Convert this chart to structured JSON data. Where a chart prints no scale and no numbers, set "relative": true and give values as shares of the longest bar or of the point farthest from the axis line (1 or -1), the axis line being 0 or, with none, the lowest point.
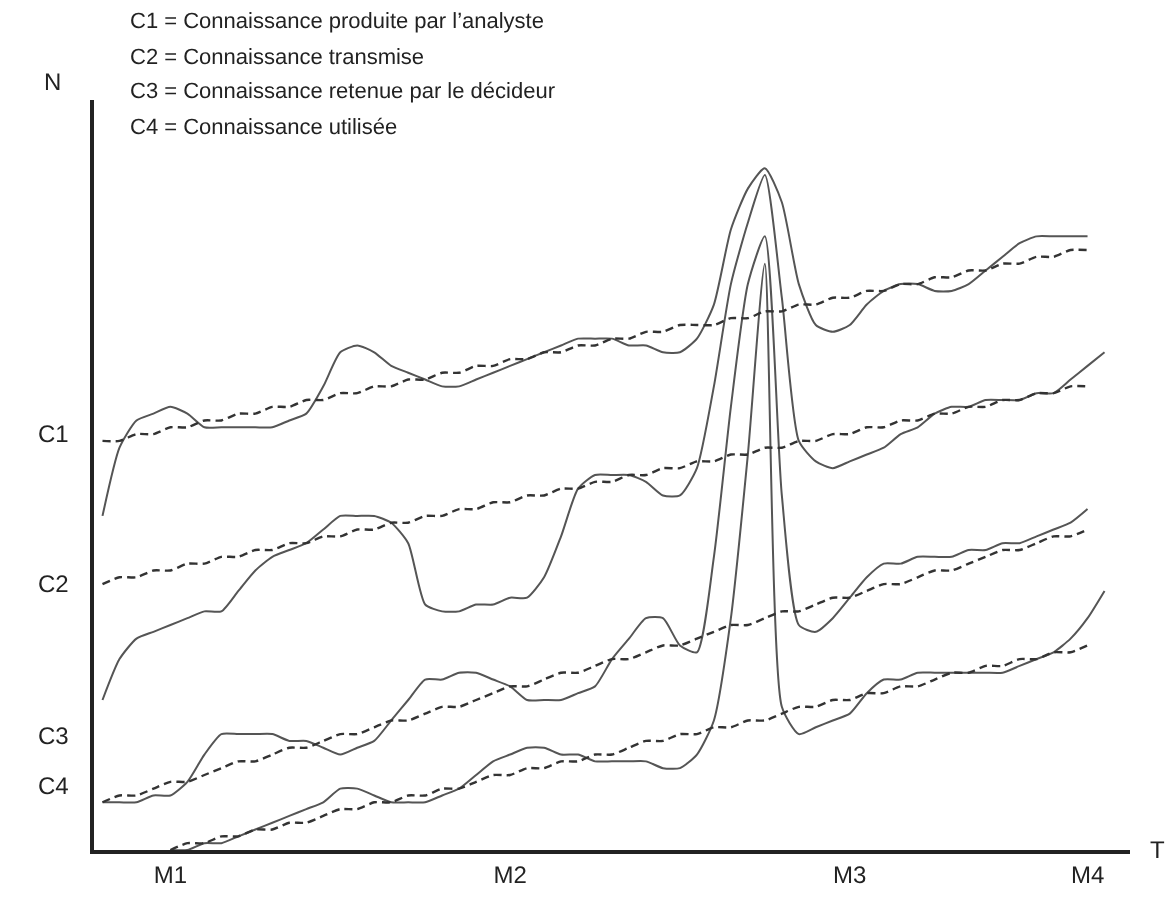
{
  "chart_data": {
    "type": "line",
    "relative": true,
    "xlabel": "T",
    "ylabel": "N",
    "categories": [
      null,
      null,
      null,
      null,
      "M1",
      null,
      null,
      null,
      null,
      null,
      null,
      null,
      null,
      null,
      null,
      null,
      null,
      null,
      null,
      null,
      null,
      null,
      null,
      null,
      "M2",
      null,
      null,
      null,
      null,
      null,
      null,
      null,
      null,
      null,
      null,
      null,
      null,
      null,
      null,
      null,
      null,
      null,
      null,
      null,
      "M3",
      null,
      null,
      null,
      null,
      null,
      null,
      null,
      null,
      null,
      null,
      null,
      null,
      null,
      "M4",
      null,
      null
    ],
    "tick_labels": "x",
    "grid": false,
    "marker": "none",
    "annotations": [
      "C1 = Connaissance produite par l’analyste",
      "C2 = Connaissance transmise",
      "C3 = Connaissance retenue par le décideur",
      "C4 = Connaissance utilisée",
      "C1",
      "C2",
      "C3",
      "C4"
    ],
    "series": [
      {
        "color": "#555555",
        "line_style": "solid",
        "values": [
          0.49,
          0.59,
          0.63,
          0.64,
          0.65,
          0.64,
          0.62,
          0.62,
          0.62,
          0.62,
          0.62,
          0.63,
          0.64,
          0.68,
          0.73,
          0.74,
          0.73,
          0.71,
          0.7,
          0.69,
          0.68,
          0.68,
          0.69,
          0.7,
          0.71,
          0.72,
          0.73,
          0.74,
          0.75,
          0.75,
          0.75,
          0.74,
          0.74,
          0.73,
          0.73,
          0.75,
          0.8,
          0.91,
          0.97,
          1.0,
          0.95,
          0.83,
          0.77,
          0.76,
          0.77,
          0.8,
          0.82,
          0.83,
          0.83,
          0.82,
          0.82,
          0.83,
          0.85,
          0.87,
          0.89,
          0.9,
          0.9,
          0.9,
          0.9,
          null,
          null
        ]
      },
      {
        "color": "#555555",
        "line_style": "solid",
        "values": [
          0.22,
          0.28,
          0.31,
          0.32,
          0.33,
          0.34,
          0.35,
          0.35,
          0.38,
          0.41,
          0.43,
          0.44,
          0.45,
          0.47,
          0.49,
          0.49,
          0.49,
          0.48,
          0.45,
          0.36,
          0.35,
          0.35,
          0.36,
          0.36,
          0.37,
          0.37,
          0.4,
          0.46,
          0.53,
          0.55,
          0.55,
          0.55,
          0.54,
          0.52,
          0.52,
          0.56,
          0.68,
          0.83,
          0.92,
          0.99,
          0.81,
          0.6,
          0.57,
          0.56,
          0.57,
          0.58,
          0.59,
          0.61,
          0.62,
          0.64,
          0.65,
          0.65,
          0.66,
          0.66,
          0.66,
          0.67,
          0.67,
          0.69,
          0.71,
          0.73,
          null
        ]
      },
      {
        "color": "#555555",
        "line_style": "solid",
        "values": [
          0.07,
          0.07,
          0.07,
          0.08,
          0.08,
          0.1,
          0.14,
          0.17,
          0.17,
          0.17,
          0.17,
          0.16,
          0.16,
          0.15,
          0.14,
          0.15,
          0.16,
          0.19,
          0.22,
          0.25,
          0.25,
          0.26,
          0.26,
          0.25,
          0.24,
          0.22,
          0.22,
          0.22,
          0.23,
          0.24,
          0.28,
          0.31,
          0.34,
          0.34,
          0.3,
          0.29,
          0.43,
          0.65,
          0.83,
          0.9,
          0.52,
          0.33,
          0.32,
          0.34,
          0.37,
          0.4,
          0.42,
          0.42,
          0.43,
          0.43,
          0.43,
          0.44,
          0.44,
          0.45,
          0.45,
          0.46,
          0.47,
          0.48,
          0.5,
          null,
          null
        ]
      },
      {
        "color": "#555555",
        "line_style": "solid",
        "values": [
          null,
          null,
          null,
          null,
          0.0,
          0.0,
          0.01,
          0.01,
          0.02,
          0.03,
          0.04,
          0.05,
          0.06,
          0.07,
          0.09,
          0.09,
          0.08,
          0.07,
          0.07,
          0.07,
          0.08,
          0.09,
          0.11,
          0.13,
          0.14,
          0.15,
          0.15,
          0.14,
          0.14,
          0.13,
          0.13,
          0.13,
          0.13,
          0.12,
          0.12,
          0.14,
          0.19,
          0.34,
          0.58,
          0.86,
          0.21,
          0.17,
          0.18,
          0.19,
          0.2,
          0.23,
          0.25,
          0.25,
          0.26,
          0.26,
          0.26,
          0.26,
          0.26,
          0.26,
          0.27,
          0.28,
          0.29,
          0.31,
          0.34,
          0.38,
          null
        ]
      },
      {
        "color": "#333333",
        "line_style": "dashed",
        "values": [
          0.6,
          0.6,
          0.61,
          0.61,
          0.62,
          0.62,
          0.63,
          0.63,
          0.64,
          0.64,
          0.65,
          0.65,
          0.66,
          0.66,
          0.67,
          0.67,
          0.68,
          0.68,
          0.69,
          0.69,
          0.7,
          0.7,
          0.71,
          0.71,
          0.72,
          0.72,
          0.73,
          0.73,
          0.74,
          0.74,
          0.75,
          0.75,
          0.76,
          0.76,
          0.77,
          0.77,
          0.77,
          0.78,
          0.78,
          0.79,
          0.79,
          0.8,
          0.8,
          0.81,
          0.81,
          0.82,
          0.82,
          0.83,
          0.83,
          0.84,
          0.84,
          0.85,
          0.85,
          0.86,
          0.86,
          0.87,
          0.87,
          0.88,
          0.88,
          null,
          null
        ]
      },
      {
        "color": "#333333",
        "line_style": "dashed",
        "values": [
          0.39,
          0.4,
          0.4,
          0.41,
          0.41,
          0.42,
          0.42,
          0.43,
          0.43,
          0.44,
          0.44,
          0.45,
          0.45,
          0.46,
          0.46,
          0.47,
          0.47,
          0.48,
          0.48,
          0.49,
          0.49,
          0.5,
          0.5,
          0.51,
          0.51,
          0.52,
          0.52,
          0.53,
          0.53,
          0.54,
          0.54,
          0.55,
          0.55,
          0.56,
          0.56,
          0.57,
          0.57,
          0.58,
          0.58,
          0.59,
          0.59,
          0.6,
          0.6,
          0.61,
          0.61,
          0.62,
          0.62,
          0.63,
          0.63,
          0.64,
          0.64,
          0.65,
          0.65,
          0.66,
          0.66,
          0.67,
          0.67,
          0.68,
          0.68,
          null,
          null
        ]
      },
      {
        "color": "#333333",
        "line_style": "dashed",
        "values": [
          0.07,
          0.08,
          0.08,
          0.09,
          0.1,
          0.1,
          0.11,
          0.12,
          0.13,
          0.13,
          0.14,
          0.15,
          0.15,
          0.16,
          0.17,
          0.17,
          0.18,
          0.19,
          0.19,
          0.2,
          0.21,
          0.21,
          0.22,
          0.23,
          0.24,
          0.24,
          0.25,
          0.26,
          0.26,
          0.27,
          0.28,
          0.28,
          0.29,
          0.3,
          0.3,
          0.31,
          0.32,
          0.33,
          0.33,
          0.34,
          0.35,
          0.35,
          0.36,
          0.37,
          0.37,
          0.38,
          0.39,
          0.39,
          0.4,
          0.41,
          0.41,
          0.42,
          0.43,
          0.44,
          0.44,
          0.45,
          0.46,
          0.46,
          0.47,
          null,
          null
        ]
      },
      {
        "color": "#333333",
        "line_style": "dashed",
        "values": [
          null,
          null,
          null,
          null,
          0.0,
          0.01,
          0.01,
          0.02,
          0.02,
          0.03,
          0.03,
          0.04,
          0.04,
          0.05,
          0.06,
          0.06,
          0.07,
          0.07,
          0.08,
          0.08,
          0.09,
          0.09,
          0.1,
          0.11,
          0.11,
          0.12,
          0.12,
          0.13,
          0.13,
          0.14,
          0.14,
          0.15,
          0.16,
          0.16,
          0.17,
          0.17,
          0.18,
          0.18,
          0.19,
          0.19,
          0.2,
          0.21,
          0.21,
          0.22,
          0.22,
          0.23,
          0.23,
          0.24,
          0.24,
          0.25,
          0.26,
          0.26,
          0.27,
          0.27,
          0.28,
          0.28,
          0.29,
          0.29,
          0.3,
          null,
          null
        ]
      }
    ]
  }
}
